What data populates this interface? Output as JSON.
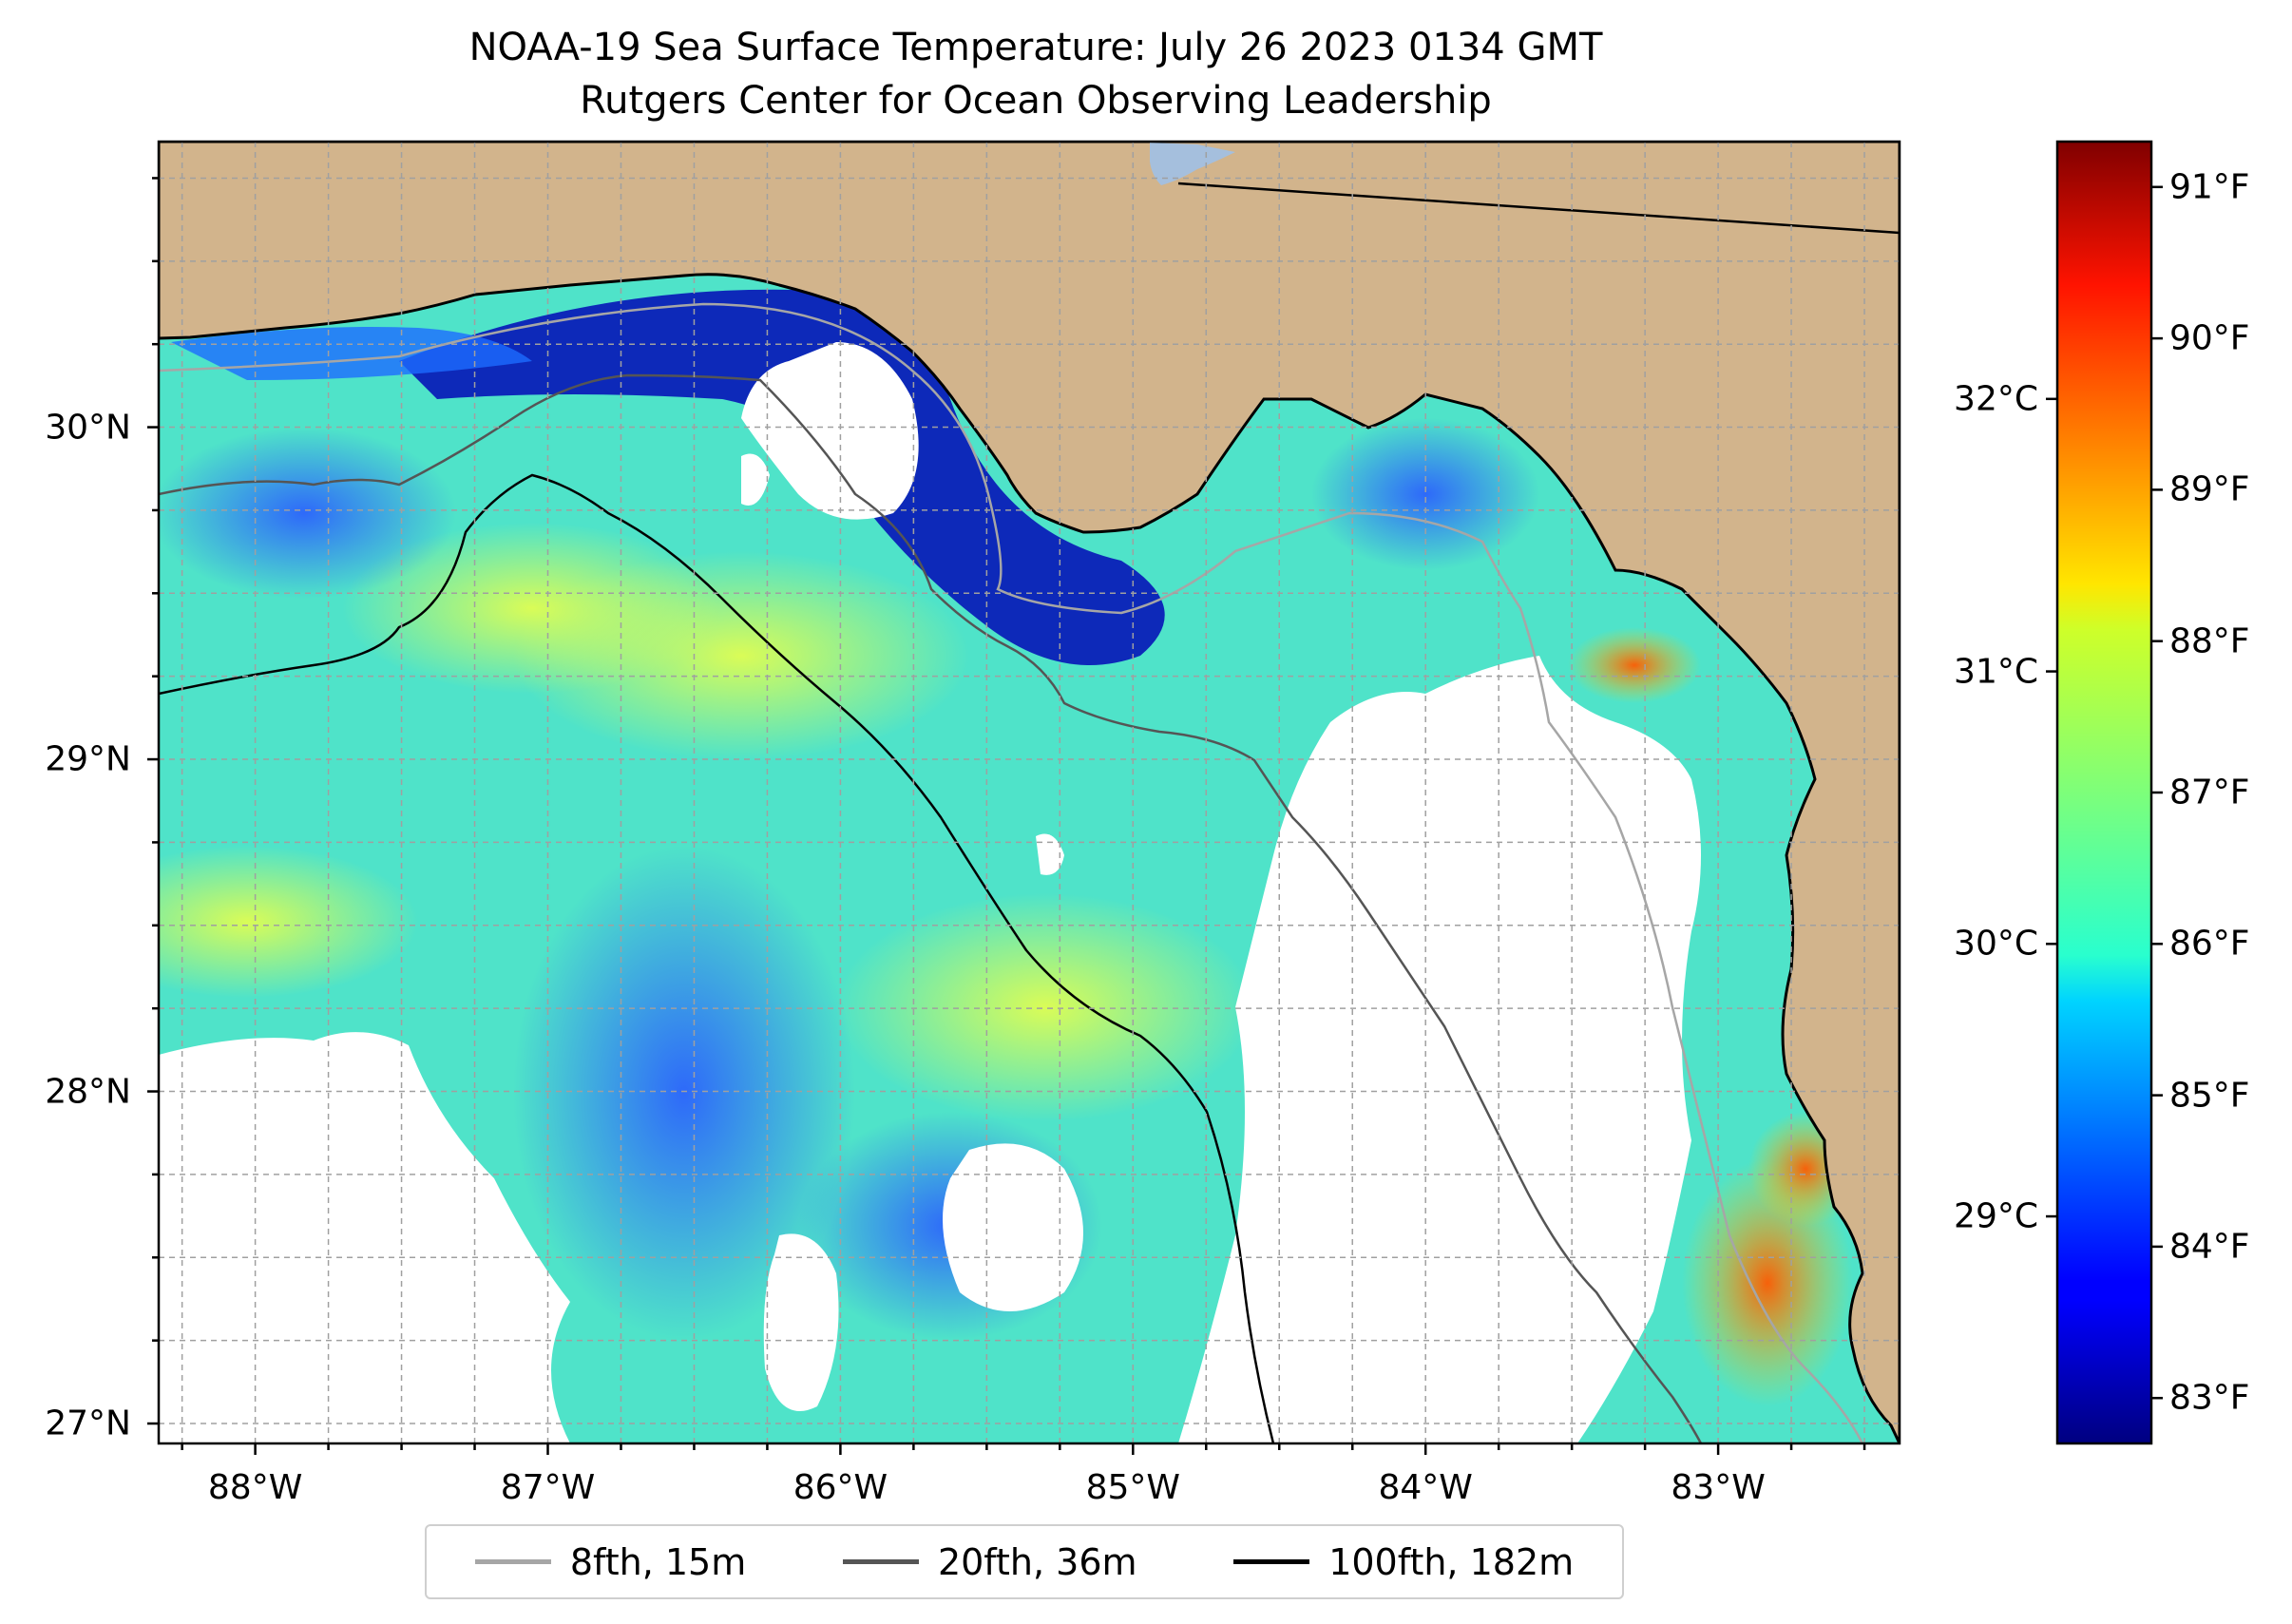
{
  "title": {
    "line1": "NOAA-19 Sea Surface Temperature: July 26 2023 0134 GMT",
    "line2": "Rutgers Center for Ocean Observing Leadership"
  },
  "map": {
    "extent": {
      "lon_min": -88.33,
      "lon_max": -82.38,
      "lat_min": 26.94,
      "lat_max": 30.86
    },
    "land_color": "#d2b48c",
    "cloud_color": "#ffffff",
    "x_ticks": [
      {
        "lon": -88,
        "label": "88°W"
      },
      {
        "lon": -87,
        "label": "87°W"
      },
      {
        "lon": -86,
        "label": "86°W"
      },
      {
        "lon": -85,
        "label": "85°W"
      },
      {
        "lon": -84,
        "label": "84°W"
      },
      {
        "lon": -83,
        "label": "83°W"
      }
    ],
    "y_ticks": [
      {
        "lat": 30,
        "label": "30°N"
      },
      {
        "lat": 29,
        "label": "29°N"
      },
      {
        "lat": 28,
        "label": "28°N"
      },
      {
        "lat": 27,
        "label": "27°N"
      }
    ],
    "gridlines": true
  },
  "colorbar": {
    "colormap": "jet",
    "range_f": [
      82.7,
      91.3
    ],
    "fahrenheit_ticks": [
      {
        "value": 83,
        "label": "83°F"
      },
      {
        "value": 84,
        "label": "84°F"
      },
      {
        "value": 85,
        "label": "85°F"
      },
      {
        "value": 86,
        "label": "86°F"
      },
      {
        "value": 87,
        "label": "87°F"
      },
      {
        "value": 88,
        "label": "88°F"
      },
      {
        "value": 89,
        "label": "89°F"
      },
      {
        "value": 90,
        "label": "90°F"
      },
      {
        "value": 91,
        "label": "91°F"
      }
    ],
    "celsius_ticks": [
      {
        "value": 29,
        "label": "29°C"
      },
      {
        "value": 30,
        "label": "30°C"
      },
      {
        "value": 31,
        "label": "31°C"
      },
      {
        "value": 32,
        "label": "32°C"
      }
    ]
  },
  "legend": {
    "placement": "bottom-center",
    "items": [
      {
        "label": "8fth, 15m",
        "color": "#a6a6a6"
      },
      {
        "label": "20fth, 36m",
        "color": "#555555"
      },
      {
        "label": "100fth, 182m",
        "color": "#000000"
      }
    ]
  }
}
